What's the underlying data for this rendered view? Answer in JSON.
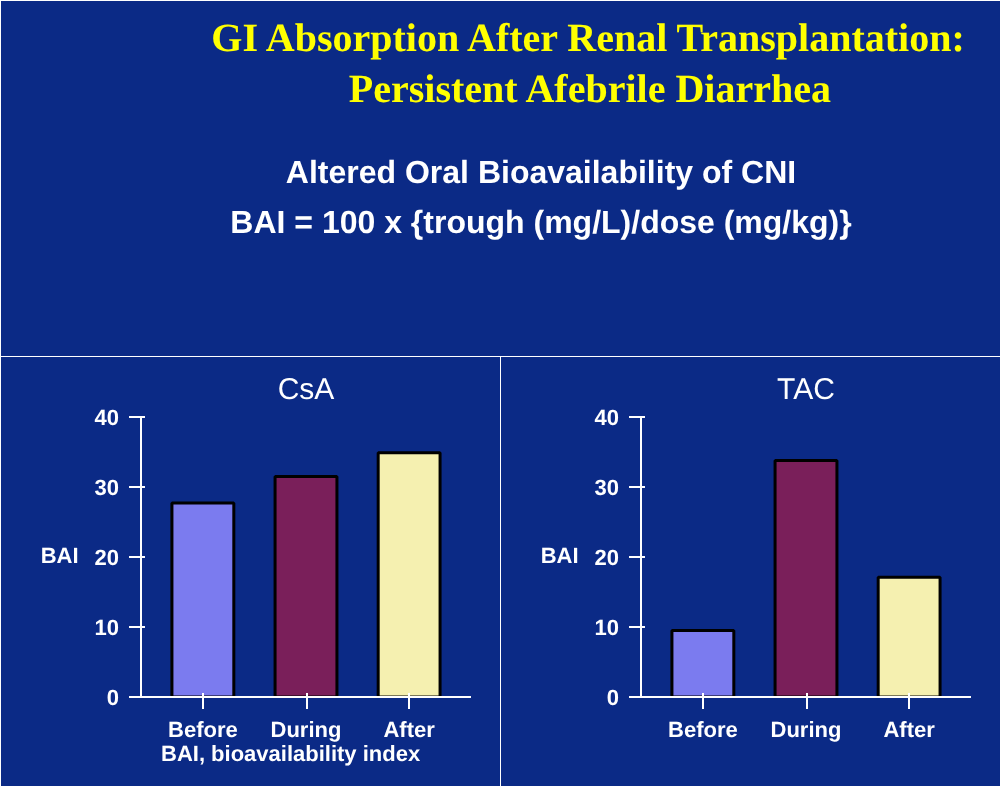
{
  "chart_data": [
    {
      "type": "other",
      "title": "GI Absorption After Renal Transplantation:\nPersistent Afebrile Diarrhea",
      "subtitle": "Altered Oral Bioavailability of CNI",
      "annotations": [
        "BAI = 100 x {trough (mg/L)/dose (mg/kg)}"
      ]
    },
    {
      "type": "bar",
      "title": "CsA",
      "ylabel": "BAI",
      "categories": [
        "Before",
        "During",
        "After"
      ],
      "values": [
        27.7,
        31.5,
        34.9
      ],
      "colors": [
        "#7b7bef",
        "#7a1f5a",
        "#f5f0b0"
      ],
      "ylim": [
        0,
        40
      ],
      "yticks": [
        0,
        10,
        20,
        30,
        40
      ],
      "grid": false,
      "annotations": [
        "BAI, bioavailability index"
      ]
    },
    {
      "type": "bar",
      "title": "TAC",
      "ylabel": "BAI",
      "categories": [
        "Before",
        "During",
        "After"
      ],
      "values": [
        9.5,
        33.8,
        17.1
      ],
      "colors": [
        "#7b7bef",
        "#7a1f5a",
        "#f5f0b0"
      ],
      "ylim": [
        0,
        40
      ],
      "yticks": [
        0,
        10,
        20,
        30,
        40
      ],
      "grid": false
    }
  ]
}
